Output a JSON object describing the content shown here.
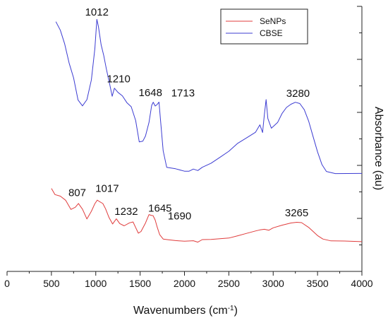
{
  "chart_data": {
    "type": "line",
    "xlabel": "Wavenumbers (cm",
    "xlabel_superscript": "-1",
    "xlabel_suffix": ")",
    "ylabel": "Absorbance (au)",
    "xlim": [
      0,
      4000
    ],
    "x_ticks": [
      "0",
      "500",
      "1000",
      "1500",
      "2000",
      "2500",
      "3000",
      "3500",
      "4000"
    ],
    "y_ticks_labeled": false,
    "grid": false,
    "legend_placement": "top-right",
    "series": [
      {
        "name": "SeNPs",
        "color": "#e03c3c",
        "points": [
          [
            500,
            0.652
          ],
          [
            540,
            0.618
          ],
          [
            600,
            0.614
          ],
          [
            660,
            0.589
          ],
          [
            720,
            0.544
          ],
          [
            770,
            0.556
          ],
          [
            805,
            0.575
          ],
          [
            850,
            0.545
          ],
          [
            900,
            0.493
          ],
          [
            950,
            0.532
          ],
          [
            990,
            0.575
          ],
          [
            1017,
            0.59
          ],
          [
            1040,
            0.586
          ],
          [
            1080,
            0.572
          ],
          [
            1110,
            0.548
          ],
          [
            1150,
            0.498
          ],
          [
            1190,
            0.468
          ],
          [
            1232,
            0.493
          ],
          [
            1270,
            0.467
          ],
          [
            1320,
            0.455
          ],
          [
            1380,
            0.475
          ],
          [
            1420,
            0.476
          ],
          [
            1450,
            0.45
          ],
          [
            1480,
            0.421
          ],
          [
            1510,
            0.427
          ],
          [
            1560,
            0.47
          ],
          [
            1600,
            0.518
          ],
          [
            1630,
            0.511
          ],
          [
            1645,
            0.509
          ],
          [
            1670,
            0.489
          ],
          [
            1690,
            0.454
          ],
          [
            1720,
            0.414
          ],
          [
            1760,
            0.387
          ],
          [
            1820,
            0.387
          ],
          [
            1900,
            0.379
          ],
          [
            2000,
            0.375
          ],
          [
            2100,
            0.378
          ],
          [
            2150,
            0.371
          ],
          [
            2200,
            0.385
          ],
          [
            2300,
            0.387
          ],
          [
            2400,
            0.392
          ],
          [
            2500,
            0.396
          ],
          [
            2600,
            0.407
          ],
          [
            2700,
            0.418
          ],
          [
            2800,
            0.429
          ],
          [
            2850,
            0.434
          ],
          [
            2900,
            0.437
          ],
          [
            2950,
            0.432
          ],
          [
            3000,
            0.445
          ],
          [
            3100,
            0.46
          ],
          [
            3200,
            0.473
          ],
          [
            3265,
            0.478
          ],
          [
            3320,
            0.474
          ],
          [
            3400,
            0.451
          ],
          [
            3500,
            0.408
          ],
          [
            3560,
            0.387
          ],
          [
            3650,
            0.378
          ],
          [
            3800,
            0.376
          ],
          [
            4000,
            0.375
          ]
        ]
      },
      {
        "name": "CBSE",
        "color": "#3c3cd2",
        "points": [
          [
            550,
            1.52
          ],
          [
            600,
            1.476
          ],
          [
            650,
            1.405
          ],
          [
            700,
            1.306
          ],
          [
            750,
            1.23
          ],
          [
            800,
            1.115
          ],
          [
            850,
            1.084
          ],
          [
            900,
            1.116
          ],
          [
            950,
            1.218
          ],
          [
            990,
            1.382
          ],
          [
            1012,
            1.53
          ],
          [
            1030,
            1.493
          ],
          [
            1060,
            1.4
          ],
          [
            1090,
            1.345
          ],
          [
            1120,
            1.275
          ],
          [
            1160,
            1.188
          ],
          [
            1185,
            1.131
          ],
          [
            1210,
            1.175
          ],
          [
            1250,
            1.15
          ],
          [
            1300,
            1.132
          ],
          [
            1350,
            1.097
          ],
          [
            1400,
            1.076
          ],
          [
            1450,
            1.005
          ],
          [
            1490,
            0.893
          ],
          [
            1530,
            0.9
          ],
          [
            1560,
            0.925
          ],
          [
            1600,
            0.997
          ],
          [
            1630,
            1.086
          ],
          [
            1648,
            1.103
          ],
          [
            1670,
            1.081
          ],
          [
            1690,
            1.086
          ],
          [
            1713,
            1.102
          ],
          [
            1730,
            1.01
          ],
          [
            1760,
            0.846
          ],
          [
            1800,
            0.764
          ],
          [
            1900,
            0.755
          ],
          [
            2000,
            0.741
          ],
          [
            2050,
            0.74
          ],
          [
            2100,
            0.751
          ],
          [
            2150,
            0.743
          ],
          [
            2200,
            0.76
          ],
          [
            2300,
            0.782
          ],
          [
            2400,
            0.814
          ],
          [
            2500,
            0.847
          ],
          [
            2600,
            0.889
          ],
          [
            2700,
            0.917
          ],
          [
            2800,
            0.945
          ],
          [
            2850,
            0.983
          ],
          [
            2880,
            0.941
          ],
          [
            2900,
            1.034
          ],
          [
            2920,
            1.116
          ],
          [
            2940,
            1.018
          ],
          [
            2980,
            0.964
          ],
          [
            3050,
            0.993
          ],
          [
            3100,
            1.04
          ],
          [
            3150,
            1.072
          ],
          [
            3200,
            1.089
          ],
          [
            3250,
            1.1
          ],
          [
            3300,
            1.094
          ],
          [
            3350,
            1.063
          ],
          [
            3400,
            1.003
          ],
          [
            3450,
            0.924
          ],
          [
            3500,
            0.845
          ],
          [
            3550,
            0.778
          ],
          [
            3600,
            0.742
          ],
          [
            3700,
            0.73
          ],
          [
            4000,
            0.73
          ]
        ]
      }
    ],
    "peak_labels": [
      {
        "text": "1012",
        "x": 1012,
        "y": 1.53,
        "series": 1
      },
      {
        "text": "1210",
        "x": 1210,
        "y": 1.175,
        "series": 1
      },
      {
        "text": "1648",
        "x": 1648,
        "y": 1.103,
        "series": 1
      },
      {
        "text": "1713",
        "x": 1713,
        "y": 1.102,
        "series": 1
      },
      {
        "text": "3280",
        "x": 3280,
        "y": 1.1,
        "series": 1
      },
      {
        "text": "807",
        "x": 807,
        "y": 0.575,
        "series": 0
      },
      {
        "text": "1017",
        "x": 1017,
        "y": 0.59,
        "series": 0
      },
      {
        "text": "1232",
        "x": 1232,
        "y": 0.493,
        "series": 0
      },
      {
        "text": "1645",
        "x": 1645,
        "y": 0.509,
        "series": 0
      },
      {
        "text": "1690",
        "x": 1690,
        "y": 0.454,
        "series": 0
      },
      {
        "text": "3265",
        "x": 3265,
        "y": 0.478,
        "series": 0
      }
    ]
  }
}
